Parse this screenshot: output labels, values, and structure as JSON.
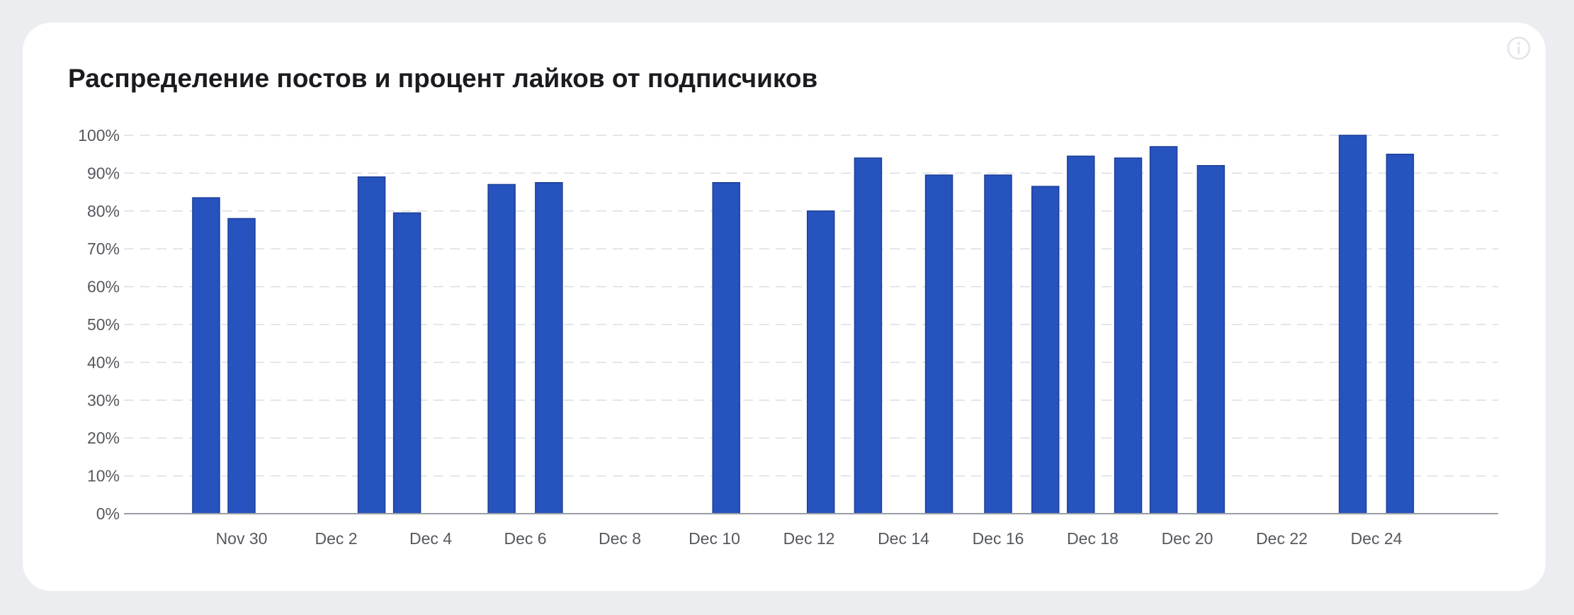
{
  "card": {
    "title": "Распределение постов и процент лайков от подписчиков",
    "info_icon": "info-icon"
  },
  "colors": {
    "bar": "#2753bf",
    "bar_stroke": "#1d3f96",
    "grid": "#dadde3",
    "axis": "#9a9ea6",
    "tick_text": "#55585e",
    "background": "#ebedf1",
    "card": "#ffffff"
  },
  "chart_data": {
    "type": "bar",
    "title": "Распределение постов и процент лайков от подписчиков",
    "xlabel": "",
    "ylabel": "",
    "x_range": [
      "Nov 28",
      "Dec 25"
    ],
    "ylim": [
      0,
      100
    ],
    "y_ticks": [
      0,
      10,
      20,
      30,
      40,
      50,
      60,
      70,
      80,
      90,
      100
    ],
    "y_tick_labels": [
      "0%",
      "10%",
      "20%",
      "30%",
      "40%",
      "50%",
      "60%",
      "70%",
      "80%",
      "90%",
      "100%"
    ],
    "x_ticks": [
      {
        "label": "Nov 30",
        "date": "Nov 30"
      },
      {
        "label": "Dec 2",
        "date": "Dec 2"
      },
      {
        "label": "Dec 4",
        "date": "Dec 4"
      },
      {
        "label": "Dec 6",
        "date": "Dec 6"
      },
      {
        "label": "Dec 8",
        "date": "Dec 8"
      },
      {
        "label": "Dec 10",
        "date": "Dec 10"
      },
      {
        "label": "Dec 12",
        "date": "Dec 12"
      },
      {
        "label": "Dec 14",
        "date": "Dec 14"
      },
      {
        "label": "Dec 16",
        "date": "Dec 16"
      },
      {
        "label": "Dec 18",
        "date": "Dec 18"
      },
      {
        "label": "Dec 20",
        "date": "Dec 20"
      },
      {
        "label": "Dec 22",
        "date": "Dec 22"
      },
      {
        "label": "Dec 24",
        "date": "Dec 24"
      }
    ],
    "grid": true,
    "legend": "none",
    "bars": [
      {
        "date": "Nov 29 06:00",
        "value": 83.5
      },
      {
        "date": "Nov 30 00:00",
        "value": 78
      },
      {
        "date": "Dec 2 18:00",
        "value": 89
      },
      {
        "date": "Dec 3 12:00",
        "value": 79.5
      },
      {
        "date": "Dec 5 12:00",
        "value": 87
      },
      {
        "date": "Dec 6 12:00",
        "value": 87.5
      },
      {
        "date": "Dec 10 06:00",
        "value": 87.5
      },
      {
        "date": "Dec 12 06:00",
        "value": 80
      },
      {
        "date": "Dec 13 06:00",
        "value": 94
      },
      {
        "date": "Dec 14 18:00",
        "value": 89.5
      },
      {
        "date": "Dec 16 00:00",
        "value": 89.5
      },
      {
        "date": "Dec 17 00:00",
        "value": 86.5
      },
      {
        "date": "Dec 17 18:00",
        "value": 94.5
      },
      {
        "date": "Dec 18 18:00",
        "value": 94
      },
      {
        "date": "Dec 19 12:00",
        "value": 97
      },
      {
        "date": "Dec 20 12:00",
        "value": 92
      },
      {
        "date": "Dec 23 12:00",
        "value": 100
      },
      {
        "date": "Dec 24 12:00",
        "value": 95
      }
    ]
  }
}
